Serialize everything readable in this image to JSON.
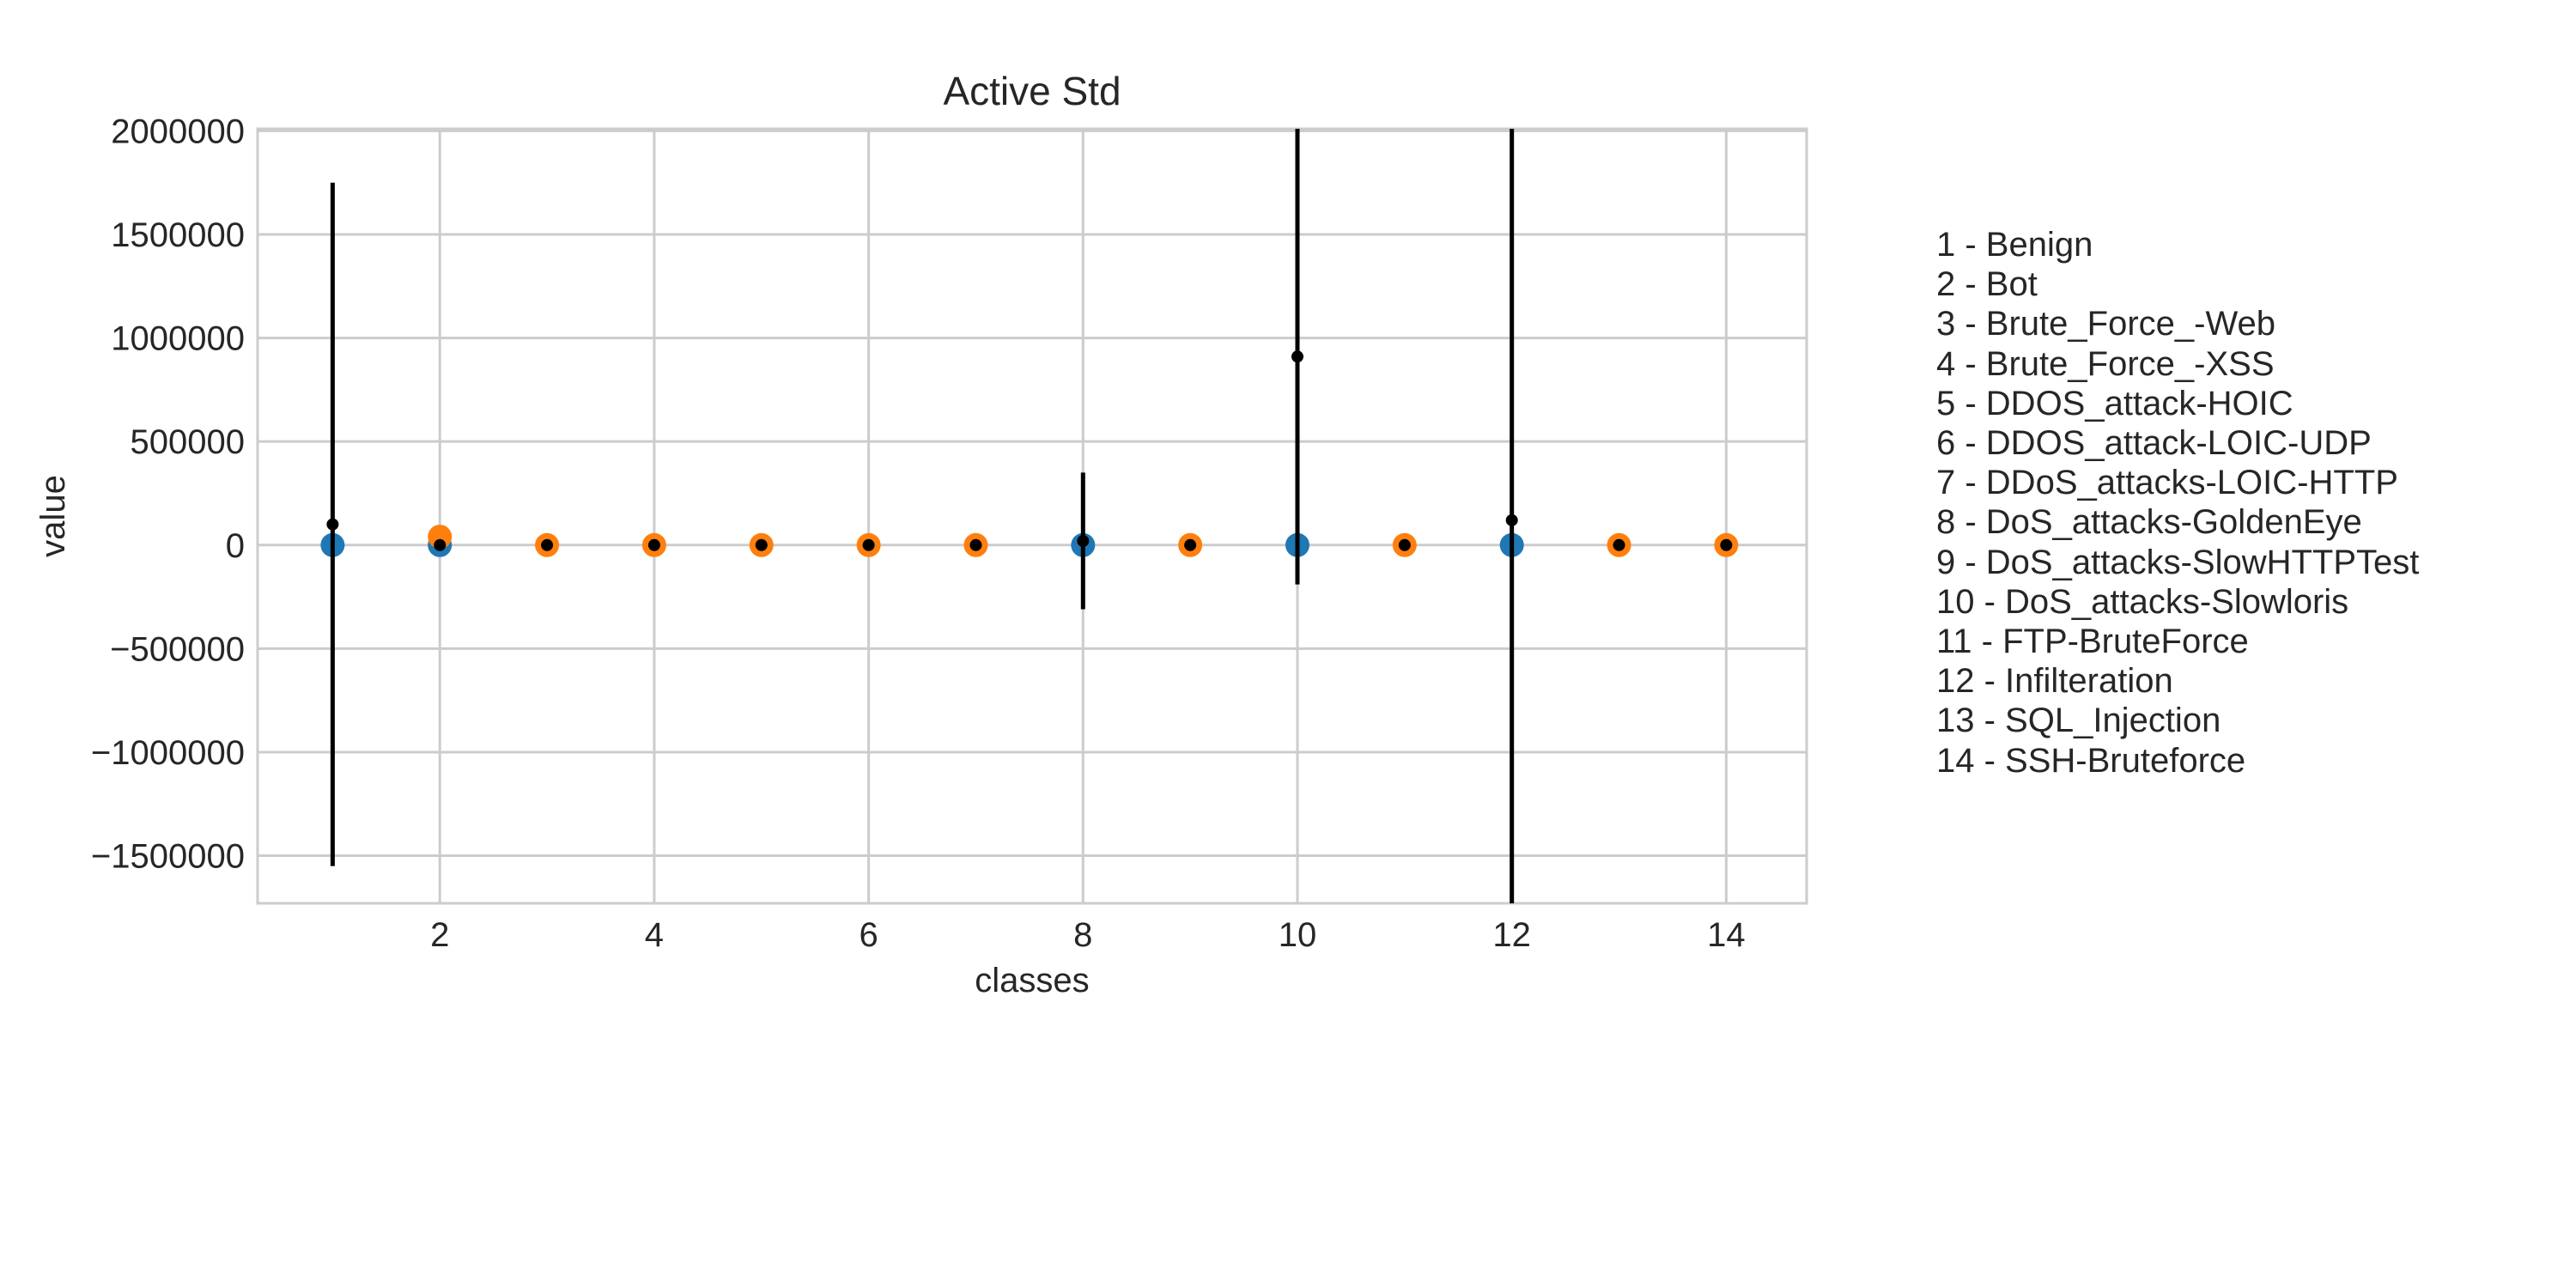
{
  "chart_data": {
    "type": "scatter",
    "title": "Active Std",
    "xlabel": "classes",
    "ylabel": "value",
    "xlim": [
      0.3,
      14.75
    ],
    "ylim": [
      -1730000,
      2010000
    ],
    "x_ticks": [
      2,
      4,
      6,
      8,
      10,
      12,
      14
    ],
    "y_ticks": [
      -1500000,
      -1000000,
      -500000,
      0,
      500000,
      1000000,
      1500000,
      2000000
    ],
    "grid": true,
    "legend_position": "right, outside plot",
    "colors": {
      "blue": "#1f77b4",
      "orange": "#ff7f0e",
      "error": "#000000",
      "grid": "#cccccc"
    },
    "series": [
      {
        "marker_color": "#1f77b4",
        "x": [
          1,
          2,
          8,
          10,
          12
        ],
        "y": [
          0,
          0,
          0,
          0,
          0
        ]
      },
      {
        "marker_color": "#ff7f0e",
        "x": [
          2,
          3,
          4,
          5,
          6,
          7,
          9,
          11,
          13,
          14
        ],
        "y": [
          40000,
          0,
          0,
          0,
          0,
          0,
          0,
          0,
          0,
          0
        ]
      },
      {
        "marker_color": "#000000",
        "x": [
          1,
          2,
          3,
          4,
          5,
          6,
          7,
          8,
          9,
          10,
          11,
          12,
          13,
          14
        ],
        "y": [
          100000,
          0,
          0,
          0,
          0,
          0,
          0,
          20000,
          0,
          910000,
          0,
          120000,
          0,
          0
        ],
        "error": [
          1650000,
          0,
          0,
          0,
          0,
          0,
          0,
          330000,
          0,
          1100000,
          0,
          2600000,
          0,
          0
        ]
      }
    ]
  },
  "legend": [
    "1 - Benign",
    "2 - Bot",
    "3 - Brute_Force_-Web",
    "4 - Brute_Force_-XSS",
    "5 - DDOS_attack-HOIC",
    "6 - DDOS_attack-LOIC-UDP",
    "7 - DDoS_attacks-LOIC-HTTP",
    "8 - DoS_attacks-GoldenEye",
    "9 - DoS_attacks-SlowHTTPTest",
    "10 - DoS_attacks-Slowloris",
    "11 - FTP-BruteForce",
    "12 - Infilteration",
    "13 - SQL_Injection",
    "14 - SSH-Bruteforce"
  ]
}
